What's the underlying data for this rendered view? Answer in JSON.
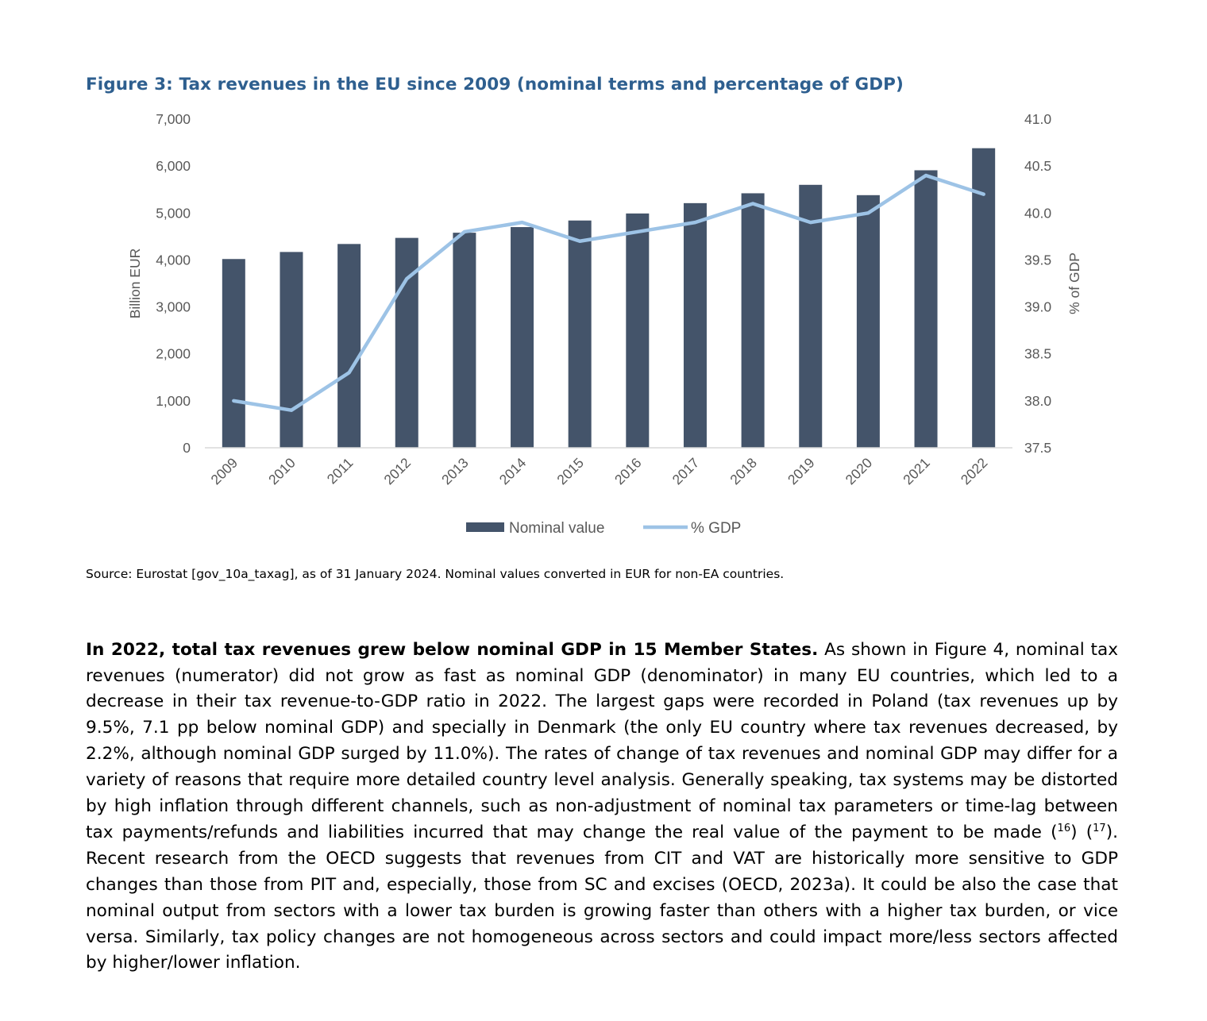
{
  "figure_title": "Figure 3: Tax revenues in the EU since 2009 (nominal terms and percentage of GDP)",
  "chart_data": {
    "type": "bar",
    "categories": [
      "2009",
      "2010",
      "2011",
      "2012",
      "2013",
      "2014",
      "2015",
      "2016",
      "2017",
      "2018",
      "2019",
      "2020",
      "2021",
      "2022"
    ],
    "series": [
      {
        "name": "Nominal value",
        "type": "bar",
        "axis": "left",
        "color": "#44546a",
        "values": [
          4020,
          4170,
          4340,
          4470,
          4580,
          4700,
          4840,
          4990,
          5210,
          5420,
          5600,
          5380,
          5910,
          6380
        ]
      },
      {
        "name": "% GDP",
        "type": "line",
        "axis": "right",
        "color": "#9dc3e6",
        "values": [
          38.0,
          37.9,
          38.3,
          39.3,
          39.8,
          39.9,
          39.7,
          39.8,
          39.9,
          40.1,
          39.9,
          40.0,
          40.4,
          40.2
        ]
      }
    ],
    "ylabel": "Billion EUR",
    "y2label": "% of GDP",
    "ylim": [
      0,
      7000
    ],
    "y2lim": [
      37.5,
      41.0
    ],
    "yticks": [
      "0",
      "1,000",
      "2,000",
      "3,000",
      "4,000",
      "5,000",
      "6,000",
      "7,000"
    ],
    "y2ticks": [
      "37.5",
      "38.0",
      "38.5",
      "39.0",
      "39.5",
      "40.0",
      "40.5",
      "41.0"
    ],
    "grid": false,
    "legend_position": "bottom"
  },
  "source_note": "Source: Eurostat [gov_10a_taxag], as of 31 January 2024. Nominal values converted in EUR for non-EA countries.",
  "paragraph": {
    "bold_lead": "In 2022, total tax revenues grew below nominal GDP in 15 Member States.",
    "text_1": " As shown in Figure 4, nominal tax revenues (numerator) did not grow as fast as nominal GDP (denominator) in many EU countries, which led to a decrease in their tax revenue-to-GDP ratio in 2022. The largest gaps were recorded in Poland (tax revenues up by 9.5%, 7.1 pp below nominal GDP) and specially in Denmark (the only EU country where tax revenues decreased, by 2.2%, although nominal GDP surged by 11.0%). The rates of change of tax revenues and nominal GDP may differ for a variety of reasons that require more detailed country level analysis. Generally speaking, tax systems may be distorted by high inflation through different channels, such as non-adjustment of nominal tax parameters or time-lag between tax payments/refunds and liabilities incurred that may change the real value of the payment to be made (",
    "fn1": "16",
    "text_2": ") (",
    "fn2": "17",
    "text_3": "). Recent research from the OECD suggests that revenues from CIT and VAT are historically more sensitive to GDP changes than those from PIT and, especially, those from SC and excises (OECD, 2023a). It could be also the case that nominal output from sectors with a lower tax burden is growing faster than others with a higher tax burden, or vice versa. Similarly, tax policy changes are not homogeneous across sectors and could impact more/less sectors affected by higher/lower inflation."
  }
}
